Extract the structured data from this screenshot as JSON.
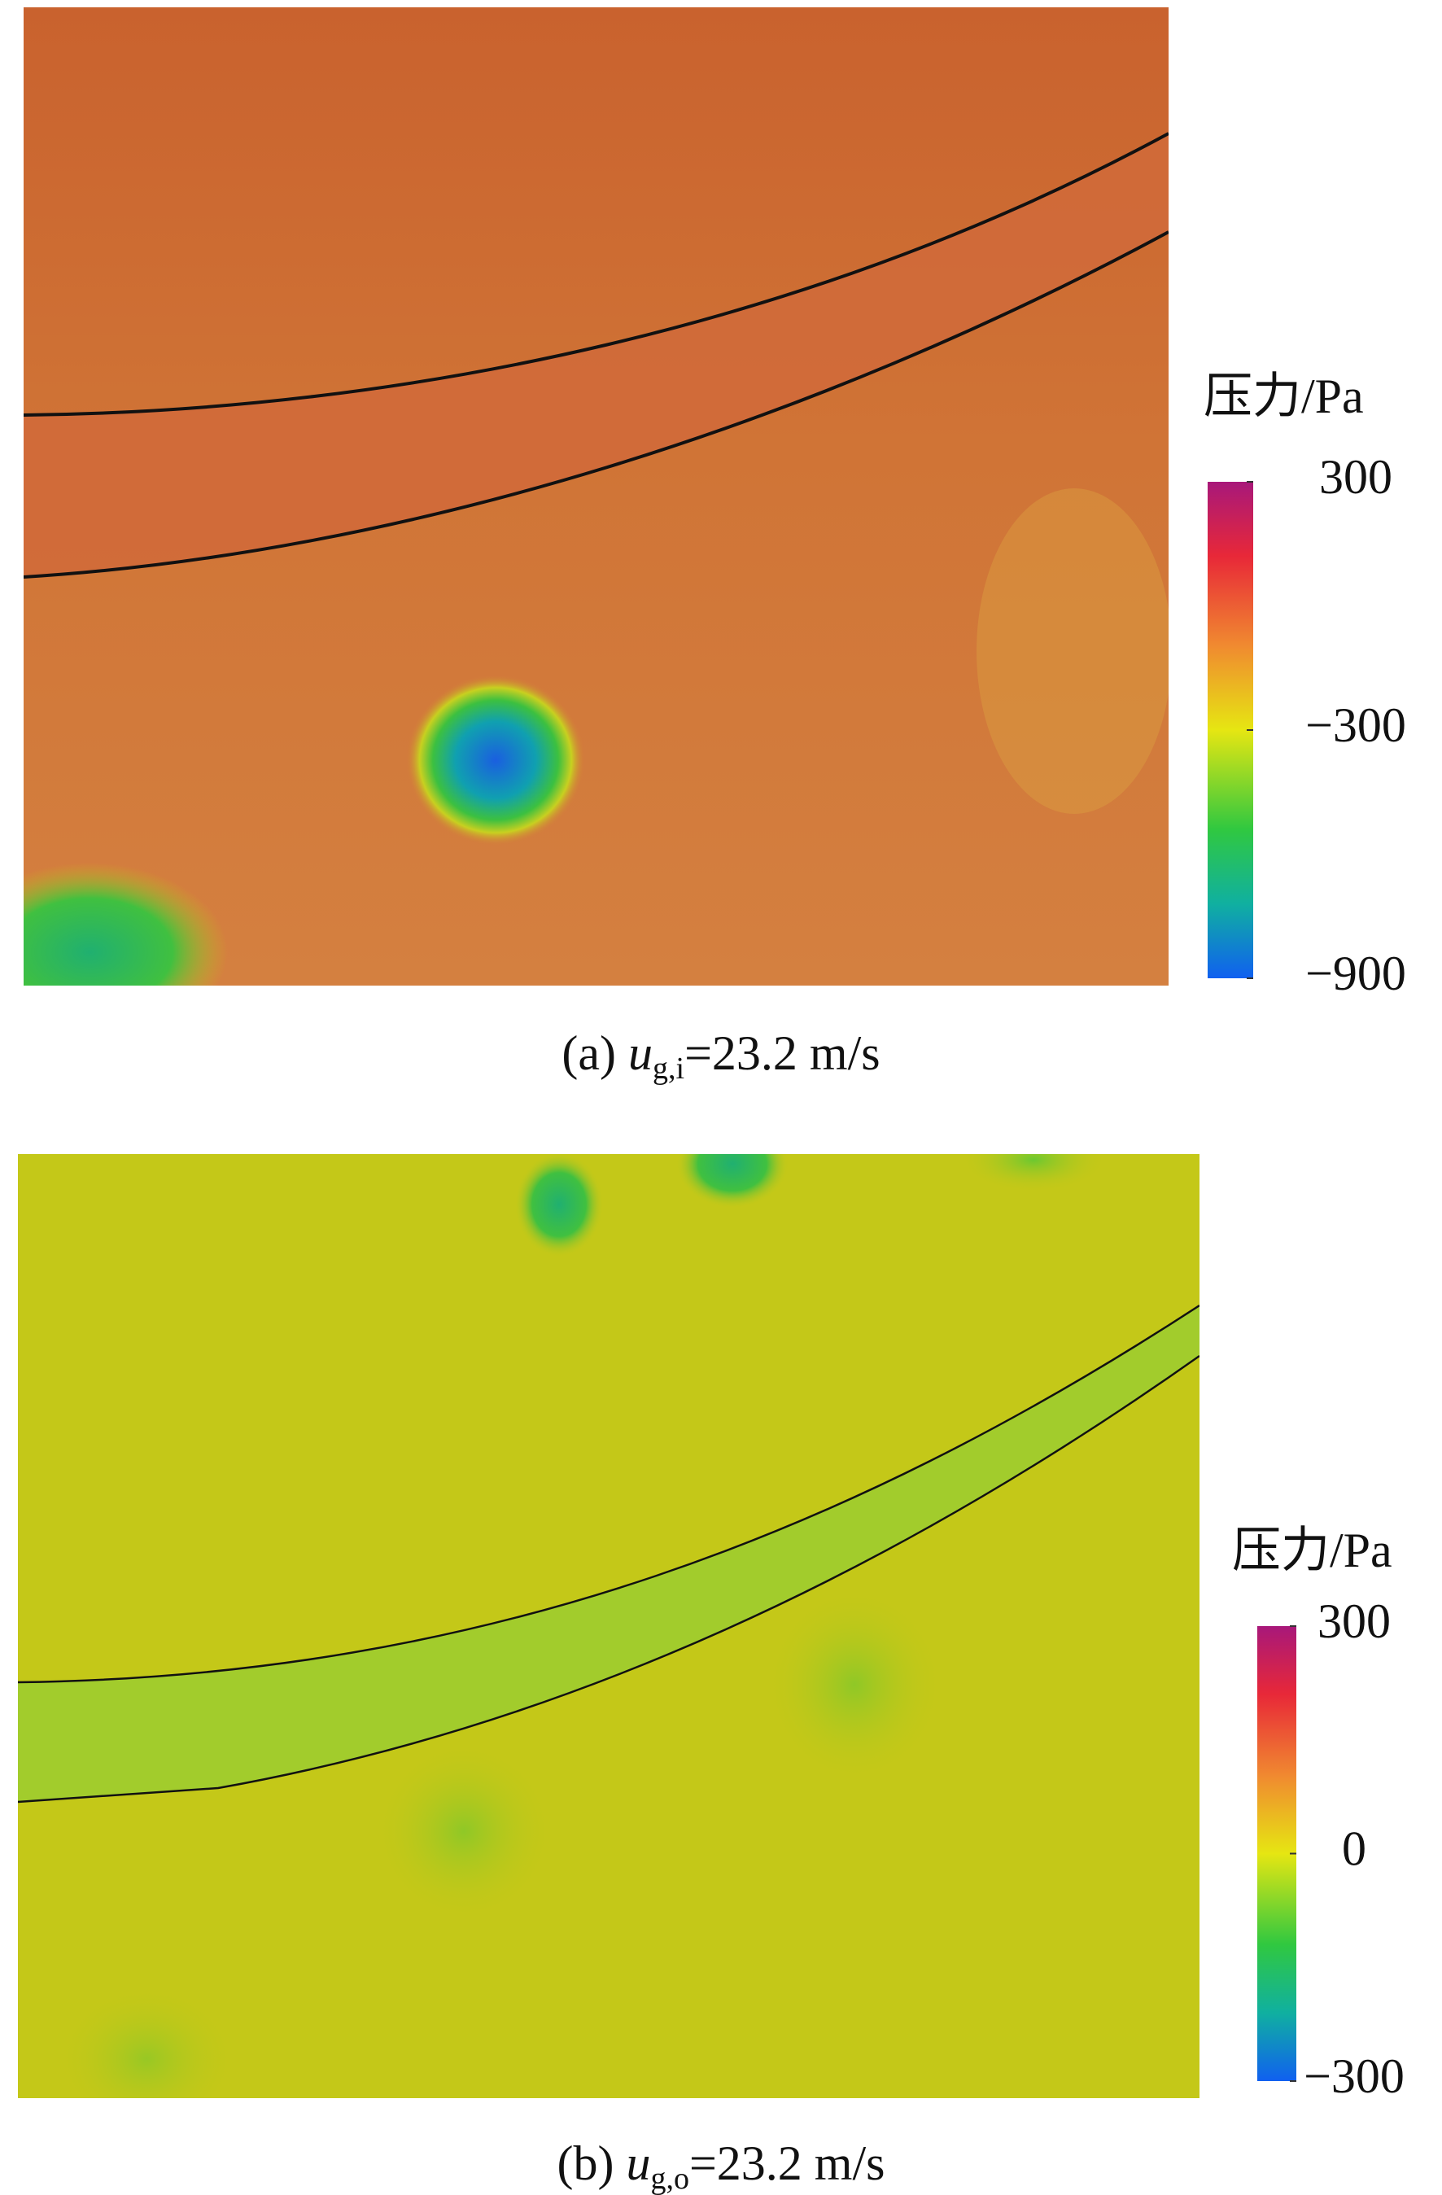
{
  "panels": [
    {
      "caption": {
        "prefix": "(a) ",
        "variable": "u",
        "subscript": "g,i",
        "rest": "=23.2 m/s"
      },
      "colorbar": {
        "label": "压力/Pa",
        "ticks": [
          {
            "value": 300,
            "label": "300"
          },
          {
            "value": -300,
            "label": "−300"
          },
          {
            "value": -900,
            "label": "−900"
          }
        ]
      }
    },
    {
      "caption": {
        "prefix": "(b) ",
        "variable": "u",
        "subscript": "g,o",
        "rest": "=23.2 m/s"
      },
      "colorbar": {
        "label": "压力/Pa",
        "ticks": [
          {
            "value": 300,
            "label": "300"
          },
          {
            "value": 0,
            "label": "0"
          },
          {
            "value": -300,
            "label": "−300"
          }
        ]
      }
    }
  ]
}
